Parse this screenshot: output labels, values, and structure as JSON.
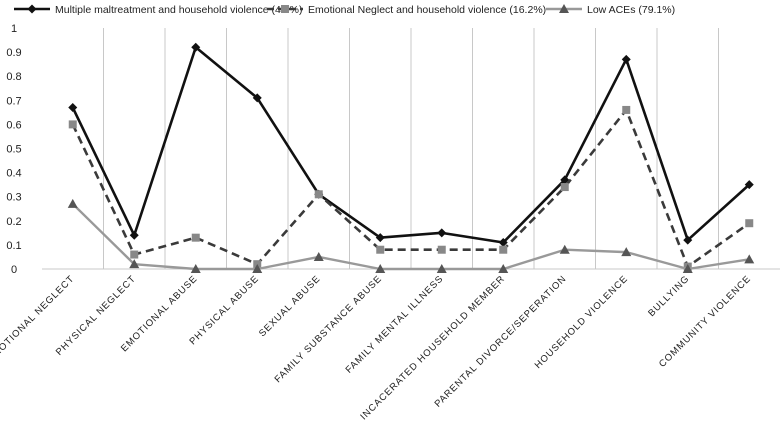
{
  "chart_data": {
    "type": "line",
    "categories": [
      "EMOTIONAL NEGLECT",
      "PHYSICAL NEGLECT",
      "EMOTIONAL ABUSE",
      "PHYSICAL ABUSE",
      "SEXUAL ABUSE",
      "FAMILY SUBSTANCE ABUSE",
      "FAMILY MENTAL ILLNESS",
      "INCACERATED HOUSEHOLD MEMBER",
      "PARENTAL DIVORCE/SEPERATION",
      "HOUSEHOLD VIOLENCE",
      "BULLYING",
      "COMMUNITY VIOLENCE"
    ],
    "series": [
      {
        "name": "Multiple maltreatment and household violence (4.7%)",
        "color": "#111111",
        "dash": "solid",
        "marker": "diamond",
        "values": [
          0.67,
          0.14,
          0.92,
          0.71,
          0.31,
          0.13,
          0.15,
          0.11,
          0.37,
          0.87,
          0.12,
          0.35
        ]
      },
      {
        "name": "Emotional Neglect and household violence (16.2%)",
        "color": "#3a3a3a",
        "dash": "dashed",
        "marker": "square",
        "values": [
          0.6,
          0.06,
          0.13,
          0.02,
          0.31,
          0.08,
          0.08,
          0.08,
          0.34,
          0.66,
          0.01,
          0.19
        ]
      },
      {
        "name": "Low ACEs (79.1%)",
        "color": "#999999",
        "dash": "solid",
        "marker": "triangle",
        "values": [
          0.27,
          0.02,
          0.0,
          0.0,
          0.05,
          0.0,
          0.0,
          0.0,
          0.08,
          0.07,
          0.0,
          0.04
        ]
      }
    ],
    "yticks": [
      "0",
      "0.1",
      "0.2",
      "0.3",
      "0.4",
      "0.5",
      "0.6",
      "0.7",
      "0.8",
      "0.9",
      "1"
    ],
    "ylim": [
      0,
      1
    ],
    "grid": "vertical",
    "legend": "top"
  }
}
